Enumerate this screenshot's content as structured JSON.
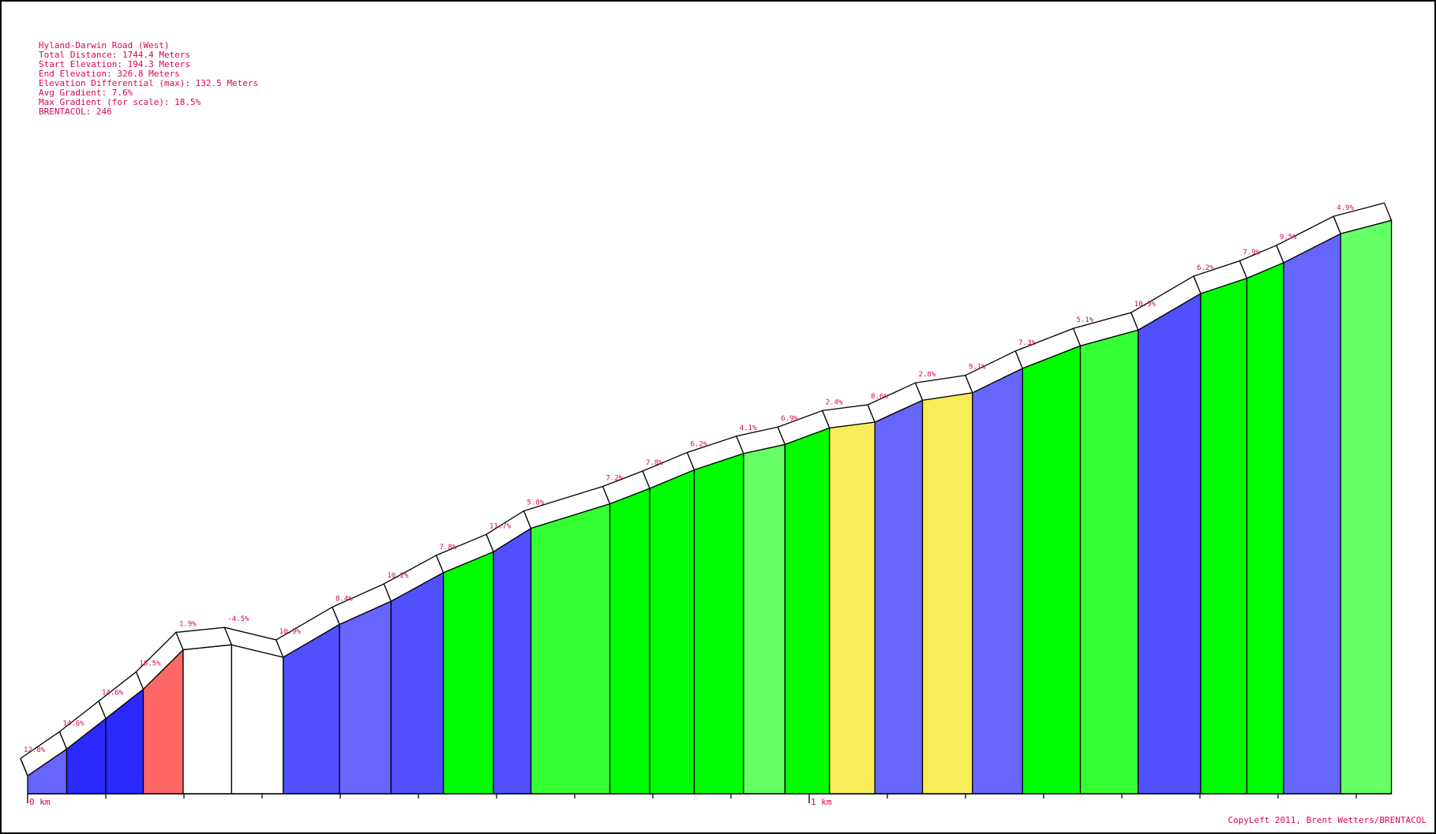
{
  "info": {
    "title": "Hyland-Darwin Road (West)",
    "total_distance": "Total Distance: 1744.4 Meters",
    "start_elevation": "Start Elevation: 194.3 Meters",
    "end_elevation": "End Elevation: 326.8 Meters",
    "elevation_differential": "Elevation Differential (max): 132.5 Meters",
    "avg_gradient": "Avg Gradient: 7.6%",
    "max_gradient": "Max Gradient (for scale): 18.5%",
    "brentacol": "BRENTACOL: 246"
  },
  "copyleft": "CopyLeft 2011, Brent Wetters/BRENTACOL",
  "colors": {
    "text": "#e0005a",
    "blue_light": "#6666ff",
    "blue": "#5050ff",
    "blue_dark": "#2a2aff",
    "green": "#00ff00",
    "green_mid": "#33ff33",
    "green_light": "#66ff66",
    "yellow": "#f8ec58",
    "red": "#ff6666",
    "white": "#ffffff"
  },
  "chart_data": {
    "type": "area",
    "title": "Hyland-Darwin Road (West)",
    "x_unit": "km",
    "x_ticks": [
      "0 km",
      "1 km"
    ],
    "start_elevation_m": 194.3,
    "end_elevation_m": 326.8,
    "segments": [
      {
        "label": "12.8%",
        "gradient": 12.8,
        "length_m": 50,
        "color": "#6666ff"
      },
      {
        "label": "14.6%",
        "gradient": 14.6,
        "length_m": 50,
        "color": "#2a2aff"
      },
      {
        "label": "14.6%",
        "gradient": 14.6,
        "length_m": 48,
        "color": "#2a2aff"
      },
      {
        "label": "18.5%",
        "gradient": 18.5,
        "length_m": 51,
        "color": "#ff6666"
      },
      {
        "label": "1.9%",
        "gradient": 1.9,
        "length_m": 62,
        "color": "#ffffff"
      },
      {
        "label": "-4.5%",
        "gradient": -4.5,
        "length_m": 66,
        "color": "#ffffff"
      },
      {
        "label": "10.9%",
        "gradient": 10.9,
        "length_m": 72,
        "color": "#5050ff"
      },
      {
        "label": "8.4%",
        "gradient": 8.4,
        "length_m": 66,
        "color": "#6666ff"
      },
      {
        "label": "10.2%",
        "gradient": 10.2,
        "length_m": 67,
        "color": "#5050ff"
      },
      {
        "label": "7.8%",
        "gradient": 7.8,
        "length_m": 64,
        "color": "#00ff00"
      },
      {
        "label": "11.7%",
        "gradient": 11.7,
        "length_m": 48,
        "color": "#5050ff"
      },
      {
        "label": "5.8%",
        "gradient": 5.8,
        "length_m": 101,
        "color": "#33ff33"
      },
      {
        "label": "7.2%",
        "gradient": 7.2,
        "length_m": 51,
        "color": "#00ff00"
      },
      {
        "label": "7.8%",
        "gradient": 7.8,
        "length_m": 57,
        "color": "#00ff00"
      },
      {
        "label": "6.2%",
        "gradient": 6.2,
        "length_m": 63,
        "color": "#00ff00"
      },
      {
        "label": "4.1%",
        "gradient": 4.1,
        "length_m": 53,
        "color": "#66ff66"
      },
      {
        "label": "6.9%",
        "gradient": 6.9,
        "length_m": 57,
        "color": "#00ff00"
      },
      {
        "label": "2.4%",
        "gradient": 2.4,
        "length_m": 58,
        "color": "#f8ec58"
      },
      {
        "label": "8.6%",
        "gradient": 8.6,
        "length_m": 61,
        "color": "#6666ff"
      },
      {
        "label": "2.8%",
        "gradient": 2.8,
        "length_m": 64,
        "color": "#f8ec58"
      },
      {
        "label": "9.1%",
        "gradient": 9.1,
        "length_m": 64,
        "color": "#6666ff"
      },
      {
        "label": "7.3%",
        "gradient": 7.3,
        "length_m": 74,
        "color": "#00ff00"
      },
      {
        "label": "5.1%",
        "gradient": 5.1,
        "length_m": 74,
        "color": "#33ff33"
      },
      {
        "label": "10.9%",
        "gradient": 10.9,
        "length_m": 80,
        "color": "#5050ff"
      },
      {
        "label": "6.2%",
        "gradient": 6.2,
        "length_m": 59,
        "color": "#00ff00"
      },
      {
        "label": "7.9%",
        "gradient": 7.9,
        "length_m": 47,
        "color": "#00ff00"
      },
      {
        "label": "9.5%",
        "gradient": 9.5,
        "length_m": 73,
        "color": "#6666ff"
      },
      {
        "label": "4.9%",
        "gradient": 4.9,
        "length_m": 65,
        "color": "#66ff66"
      }
    ]
  }
}
